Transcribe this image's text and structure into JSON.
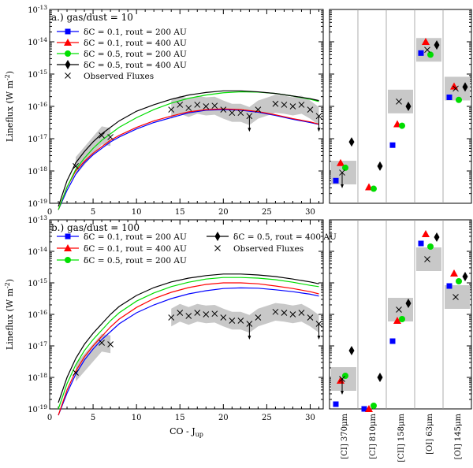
{
  "chart_data": [
    {
      "type": "line",
      "panel_label": "a.) gas/dust = 10",
      "xlabel": "CO - J_up",
      "ylabel": "Lineflux (W m^-2)",
      "xlim": [
        0,
        31.5
      ],
      "ylim_log10": [
        -19,
        -13
      ],
      "x_ticks": [
        0,
        5,
        10,
        15,
        20,
        25,
        30
      ],
      "y_ticks": [
        "10^-19",
        "10^-18",
        "10^-17",
        "10^-16",
        "10^-15",
        "10^-14",
        "10^-13"
      ],
      "legend": [
        {
          "label": "δC = 0.1, rout = 200 AU",
          "color": "#0000ff",
          "marker": "square"
        },
        {
          "label": "δC = 0.1, rout = 400 AU",
          "color": "#ff0000",
          "marker": "triangle"
        },
        {
          "label": "δC = 0.5, rout = 200 AU",
          "color": "#00e000",
          "marker": "circle"
        },
        {
          "label": "δC = 0.5, rout = 400 AU",
          "color": "#000000",
          "marker": "diamond"
        },
        {
          "label": "Observed Fluxes",
          "color": "#000000",
          "marker": "x"
        }
      ],
      "series": [
        {
          "name": "δC = 0.1, rout = 200 AU",
          "x": [
            1,
            2,
            3,
            4,
            5,
            6,
            7,
            8,
            10,
            12,
            14,
            16,
            18,
            20,
            22,
            24,
            26,
            28,
            30,
            31
          ],
          "log10_y": [
            -19.3,
            -18.6,
            -18.1,
            -17.75,
            -17.5,
            -17.3,
            -17.1,
            -16.95,
            -16.7,
            -16.5,
            -16.35,
            -16.2,
            -16.12,
            -16.1,
            -16.12,
            -16.18,
            -16.28,
            -16.4,
            -16.5,
            -16.56
          ]
        },
        {
          "name": "δC = 0.1, rout = 400 AU",
          "x": [
            1,
            2,
            3,
            4,
            5,
            6,
            7,
            8,
            10,
            12,
            14,
            16,
            18,
            20,
            22,
            24,
            26,
            28,
            30,
            31
          ],
          "log10_y": [
            -19.2,
            -18.5,
            -18.0,
            -17.7,
            -17.45,
            -17.25,
            -17.05,
            -16.9,
            -16.65,
            -16.45,
            -16.3,
            -16.17,
            -16.1,
            -16.08,
            -16.1,
            -16.16,
            -16.26,
            -16.38,
            -16.48,
            -16.55
          ]
        },
        {
          "name": "δC = 0.5, rout = 200 AU",
          "x": [
            1,
            2,
            3,
            4,
            5,
            6,
            7,
            8,
            10,
            12,
            14,
            16,
            18,
            20,
            22,
            24,
            26,
            28,
            30,
            31
          ],
          "log10_y": [
            -19.3,
            -18.5,
            -17.95,
            -17.6,
            -17.3,
            -17.05,
            -16.85,
            -16.65,
            -16.35,
            -16.1,
            -15.9,
            -15.75,
            -15.65,
            -15.58,
            -15.55,
            -15.56,
            -15.6,
            -15.68,
            -15.78,
            -15.85
          ]
        },
        {
          "name": "δC = 0.5, rout = 400 AU",
          "x": [
            1,
            2,
            3,
            4,
            5,
            6,
            7,
            8,
            10,
            12,
            14,
            16,
            18,
            20,
            22,
            24,
            26,
            28,
            30,
            31
          ],
          "log10_y": [
            -19.1,
            -18.3,
            -17.75,
            -17.4,
            -17.1,
            -16.85,
            -16.65,
            -16.45,
            -16.15,
            -15.95,
            -15.78,
            -15.65,
            -15.57,
            -15.52,
            -15.52,
            -15.55,
            -15.6,
            -15.68,
            -15.76,
            -15.82
          ]
        }
      ],
      "observed": {
        "x": [
          3,
          6,
          7,
          14,
          15,
          16,
          17,
          18,
          19,
          20,
          21,
          22,
          23,
          24,
          26,
          27,
          28,
          29,
          30,
          31
        ],
        "log10_y": [
          -17.85,
          -16.9,
          -16.95,
          -16.1,
          -15.95,
          -16.05,
          -15.95,
          -16.0,
          -15.98,
          -16.1,
          -16.2,
          -16.2,
          -16.3,
          -16.1,
          -15.92,
          -15.95,
          -16.0,
          -15.95,
          -16.1,
          -16.3
        ],
        "upper_limits_x": [
          23,
          31
        ]
      },
      "atomic_lines": {
        "categories": [
          "[CI] 370μm",
          "[CI] 810μm",
          "[CII] 158μm",
          "[OI] 63μm",
          "[OI] 145μm"
        ],
        "square_blue": [
          -18.3,
          null,
          -17.2,
          -14.35,
          -15.72
        ],
        "triangle_red": [
          -17.75,
          -18.5,
          -16.55,
          -14.0,
          -15.38
        ],
        "circle_green": [
          -17.9,
          -18.55,
          -16.6,
          -14.4,
          -15.8
        ],
        "diamond_black": [
          -17.1,
          -17.85,
          -16.0,
          -14.1,
          -15.4
        ],
        "observed_x": [
          -18.05,
          null,
          -15.85,
          -14.25,
          -15.45
        ]
      }
    },
    {
      "type": "line",
      "panel_label": "b.) gas/dust = 100",
      "xlabel": "CO - J_up",
      "ylabel": "Lineflux (W m^-2)",
      "xlim": [
        0,
        31.5
      ],
      "ylim_log10": [
        -19,
        -13
      ],
      "x_ticks": [
        0,
        5,
        10,
        15,
        20,
        25,
        30
      ],
      "y_ticks": [
        "10^-19",
        "10^-18",
        "10^-17",
        "10^-16",
        "10^-15",
        "10^-14",
        "10^-13"
      ],
      "legend": [
        {
          "label": "δC = 0.1, rout = 200 AU",
          "color": "#0000ff",
          "marker": "square"
        },
        {
          "label": "δC = 0.1, rout = 400 AU",
          "color": "#ff0000",
          "marker": "triangle"
        },
        {
          "label": "δC = 0.5, rout = 200 AU",
          "color": "#00e000",
          "marker": "circle"
        },
        {
          "label": "δC = 0.5, rout = 400 AU",
          "color": "#000000",
          "marker": "diamond"
        },
        {
          "label": "Observed Fluxes",
          "color": "#000000",
          "marker": "x"
        }
      ],
      "series": [
        {
          "name": "δC = 0.1, rout = 200 AU",
          "x": [
            1,
            2,
            3,
            4,
            5,
            6,
            7,
            8,
            10,
            12,
            14,
            16,
            18,
            20,
            22,
            24,
            26,
            28,
            30,
            31
          ],
          "log10_y": [
            -19.3,
            -18.5,
            -17.9,
            -17.45,
            -17.1,
            -16.8,
            -16.55,
            -16.3,
            -15.95,
            -15.7,
            -15.5,
            -15.35,
            -15.25,
            -15.18,
            -15.16,
            -15.17,
            -15.22,
            -15.28,
            -15.36,
            -15.42
          ]
        },
        {
          "name": "δC = 0.1, rout = 400 AU",
          "x": [
            1,
            2,
            3,
            4,
            5,
            6,
            7,
            8,
            10,
            12,
            14,
            16,
            18,
            20,
            22,
            24,
            26,
            28,
            30,
            31
          ],
          "log10_y": [
            -19.2,
            -18.4,
            -17.8,
            -17.35,
            -17.0,
            -16.7,
            -16.4,
            -16.15,
            -15.78,
            -15.5,
            -15.3,
            -15.15,
            -15.05,
            -15.0,
            -15.0,
            -15.03,
            -15.1,
            -15.18,
            -15.28,
            -15.35
          ]
        },
        {
          "name": "δC = 0.5, rout = 200 AU",
          "x": [
            1,
            2,
            3,
            4,
            5,
            6,
            7,
            8,
            10,
            12,
            14,
            16,
            18,
            20,
            22,
            24,
            26,
            28,
            30,
            31
          ],
          "log10_y": [
            -19.0,
            -18.2,
            -17.6,
            -17.15,
            -16.8,
            -16.5,
            -16.2,
            -15.95,
            -15.58,
            -15.32,
            -15.12,
            -14.98,
            -14.88,
            -14.83,
            -14.83,
            -14.85,
            -14.9,
            -14.98,
            -15.08,
            -15.12
          ]
        },
        {
          "name": "δC = 0.5, rout = 400 AU",
          "x": [
            1,
            2,
            3,
            4,
            5,
            6,
            7,
            8,
            10,
            12,
            14,
            16,
            18,
            20,
            22,
            24,
            26,
            28,
            30,
            31
          ],
          "log10_y": [
            -18.8,
            -18.0,
            -17.4,
            -16.95,
            -16.6,
            -16.3,
            -16.0,
            -15.75,
            -15.4,
            -15.15,
            -14.97,
            -14.85,
            -14.77,
            -14.72,
            -14.72,
            -14.75,
            -14.8,
            -14.88,
            -14.97,
            -15.03
          ]
        }
      ],
      "observed": {
        "x": [
          3,
          6,
          7,
          14,
          15,
          16,
          17,
          18,
          19,
          20,
          21,
          22,
          23,
          24,
          26,
          27,
          28,
          29,
          30,
          31
        ],
        "log10_y": [
          -17.85,
          -16.9,
          -16.95,
          -16.1,
          -15.95,
          -16.05,
          -15.95,
          -16.0,
          -15.98,
          -16.1,
          -16.2,
          -16.2,
          -16.3,
          -16.1,
          -15.92,
          -15.95,
          -16.0,
          -15.95,
          -16.1,
          -16.3
        ],
        "upper_limits_x": [
          23,
          31
        ]
      },
      "atomic_lines": {
        "categories": [
          "[CI] 370μm",
          "[CI] 810μm",
          "[CII] 158μm",
          "[OI] 63μm",
          "[OI] 145μm"
        ],
        "square_blue": [
          -18.85,
          -19.0,
          -16.85,
          -13.75,
          -15.1
        ],
        "triangle_red": [
          -18.1,
          -19.0,
          -16.2,
          -13.45,
          -14.7
        ],
        "circle_green": [
          -17.95,
          -18.9,
          -16.15,
          -13.85,
          -14.95
        ],
        "diamond_black": [
          -17.15,
          -18.0,
          -15.65,
          -13.55,
          -14.8
        ],
        "observed_x": [
          -18.05,
          null,
          -15.85,
          -14.25,
          -15.45
        ]
      }
    }
  ]
}
